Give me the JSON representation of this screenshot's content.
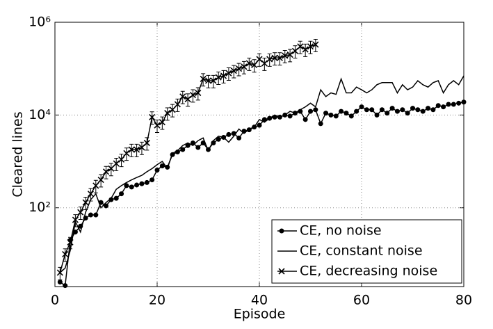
{
  "chart_data": {
    "type": "line",
    "xlabel": "Episode",
    "ylabel": "Cleared lines",
    "xlim": [
      0,
      80
    ],
    "xticks": [
      0,
      20,
      40,
      60,
      80
    ],
    "ylim": [
      2,
      1000000
    ],
    "log_y": true,
    "yticks": [
      {
        "value": 100,
        "label": "10²"
      },
      {
        "value": 10000,
        "label": "10⁴"
      },
      {
        "value": 1000000,
        "label": "10⁶"
      }
    ],
    "grid": true,
    "legend": "lower right",
    "series": [
      {
        "name": "CE, no noise",
        "color": "#000000",
        "marker": "dot",
        "x": [
          1,
          2,
          3,
          4,
          5,
          6,
          7,
          8,
          9,
          10,
          11,
          12,
          13,
          14,
          15,
          16,
          17,
          18,
          19,
          20,
          21,
          22,
          23,
          24,
          25,
          26,
          27,
          28,
          29,
          30,
          31,
          32,
          33,
          34,
          35,
          36,
          37,
          38,
          39,
          40,
          41,
          42,
          43,
          44,
          45,
          46,
          47,
          48,
          49,
          50,
          51,
          52,
          53,
          54,
          55,
          56,
          57,
          58,
          59,
          60,
          61,
          62,
          63,
          64,
          65,
          66,
          67,
          68,
          69,
          70,
          71,
          72,
          73,
          74,
          75,
          76,
          77,
          78,
          79,
          80
        ],
        "values": [
          2.5,
          2.1,
          20,
          30,
          40,
          60,
          70,
          70,
          130,
          110,
          150,
          160,
          200,
          300,
          280,
          310,
          330,
          350,
          400,
          650,
          800,
          750,
          1400,
          1600,
          1800,
          2200,
          2500,
          2000,
          2500,
          1800,
          2500,
          3000,
          3300,
          3800,
          4000,
          3200,
          4500,
          4800,
          5500,
          6000,
          8000,
          8500,
          9000,
          9000,
          10000,
          9500,
          11000,
          12000,
          8000,
          12000,
          13000,
          6500,
          11000,
          10000,
          9500,
          12000,
          11000,
          9500,
          12000,
          15000,
          13000,
          13000,
          10000,
          13000,
          11000,
          14000,
          12000,
          13000,
          11000,
          14000,
          13000,
          12000,
          14000,
          13000,
          16000,
          15000,
          17000,
          17000,
          18000,
          19000
        ]
      },
      {
        "name": "CE, constant noise",
        "color": "#000000",
        "marker": "none",
        "x": [
          1,
          2,
          3,
          4,
          5,
          6,
          7,
          8,
          9,
          10,
          11,
          12,
          13,
          14,
          15,
          16,
          17,
          18,
          19,
          20,
          21,
          22,
          23,
          24,
          25,
          26,
          27,
          28,
          29,
          30,
          31,
          32,
          33,
          34,
          35,
          36,
          37,
          38,
          39,
          40,
          41,
          42,
          43,
          44,
          45,
          46,
          47,
          48,
          49,
          50,
          51,
          52,
          53,
          54,
          55,
          56,
          57,
          58,
          59,
          60,
          61,
          62,
          63,
          64,
          65,
          66,
          67,
          68,
          69,
          70,
          71,
          72,
          73,
          74,
          75,
          76,
          77,
          78,
          79,
          80
        ],
        "values": [
          4,
          5,
          12,
          50,
          30,
          80,
          150,
          200,
          100,
          130,
          160,
          250,
          300,
          350,
          400,
          450,
          500,
          600,
          700,
          850,
          1000,
          700,
          1500,
          1700,
          2200,
          2500,
          2200,
          2800,
          3200,
          1700,
          2800,
          3500,
          3300,
          2600,
          3500,
          5000,
          4000,
          5000,
          5500,
          8000,
          7000,
          8500,
          10000,
          9000,
          10000,
          12000,
          11000,
          13000,
          15000,
          18000,
          15000,
          35000,
          25000,
          30000,
          28000,
          60000,
          30000,
          30000,
          40000,
          35000,
          30000,
          35000,
          45000,
          50000,
          50000,
          50000,
          30000,
          45000,
          35000,
          40000,
          55000,
          45000,
          40000,
          50000,
          55000,
          30000,
          45000,
          55000,
          45000,
          70000
        ]
      },
      {
        "name": "CE, decreasing noise",
        "color": "#000000",
        "marker": "x",
        "x": [
          1,
          2,
          3,
          4,
          5,
          6,
          7,
          8,
          9,
          10,
          11,
          12,
          13,
          14,
          15,
          16,
          17,
          18,
          19,
          20,
          21,
          22,
          23,
          24,
          25,
          26,
          27,
          28,
          29,
          30,
          31,
          32,
          33,
          34,
          35,
          36,
          37,
          38,
          39,
          40,
          41,
          42,
          43,
          44,
          45,
          46,
          47,
          48,
          49,
          50,
          51
        ],
        "values": [
          4,
          10,
          18,
          55,
          80,
          130,
          200,
          300,
          400,
          600,
          700,
          900,
          1100,
          1500,
          1800,
          1800,
          2000,
          2500,
          9000,
          6000,
          7000,
          11000,
          13000,
          17000,
          25000,
          22000,
          27000,
          30000,
          60000,
          55000,
          55000,
          65000,
          70000,
          80000,
          90000,
          100000,
          110000,
          130000,
          120000,
          160000,
          130000,
          160000,
          170000,
          170000,
          190000,
          200000,
          240000,
          300000,
          260000,
          300000,
          330000
        ],
        "errors": [
          1.2,
          3,
          5,
          16,
          24,
          39,
          60,
          90,
          120,
          180,
          210,
          270,
          330,
          450,
          540,
          540,
          600,
          750,
          2700,
          1800,
          2100,
          3300,
          3900,
          5100,
          7500,
          6600,
          8100,
          9000,
          18000,
          16500,
          16500,
          19500,
          21000,
          24000,
          27000,
          30000,
          33000,
          39000,
          36000,
          48000,
          39000,
          48000,
          51000,
          51000,
          57000,
          60000,
          72000,
          90000,
          78000,
          90000,
          99000
        ]
      }
    ]
  }
}
